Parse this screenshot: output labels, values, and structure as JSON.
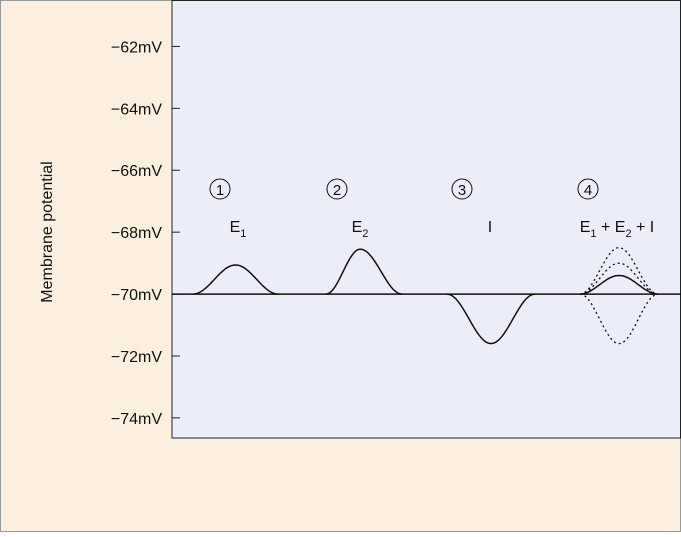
{
  "chart_data": {
    "type": "psp",
    "y_label": "Membrane potential",
    "ylim": [
      -74.65,
      -60.5
    ],
    "yticks": [
      {
        "value": -62,
        "label": "−62mV"
      },
      {
        "value": -64,
        "label": "−64mV"
      },
      {
        "value": -66,
        "label": "−66mV"
      },
      {
        "value": -68,
        "label": "−68mV"
      },
      {
        "value": -70,
        "label": "−70mV"
      },
      {
        "value": -72,
        "label": "−72mV"
      },
      {
        "value": -74,
        "label": "−74mV"
      }
    ],
    "baseline": -70,
    "events": [
      {
        "number": "1",
        "label": [
          {
            "text": "E",
            "sub": "1"
          }
        ],
        "peak": -69.06
      },
      {
        "number": "2",
        "label": [
          {
            "text": "E",
            "sub": "2"
          }
        ],
        "peak": -68.55
      },
      {
        "number": "3",
        "label": [
          {
            "text": "I"
          }
        ],
        "peak": -71.6
      },
      {
        "number": "4",
        "label": [
          {
            "text": "E",
            "sub": "1"
          },
          {
            "text": " + E",
            "sub": "2"
          },
          {
            "text": " + I"
          }
        ],
        "peak": -69.4,
        "dotted_peaks": [
          -68.5,
          -69.0,
          -71.6
        ]
      }
    ]
  }
}
